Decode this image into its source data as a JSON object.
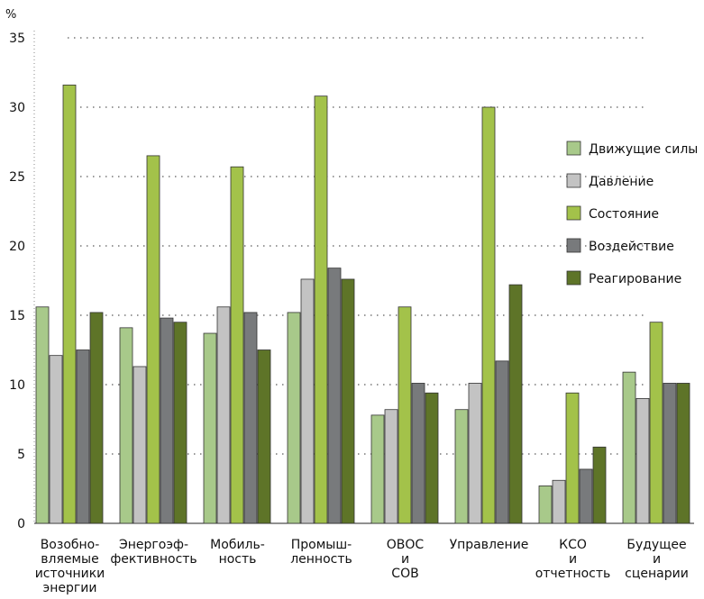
{
  "chart_data": {
    "type": "bar",
    "ylabel": "%",
    "ylim": [
      0,
      35
    ],
    "yticks": [
      0,
      5,
      10,
      15,
      20,
      25,
      30,
      35
    ],
    "grid": "horizontal dotted",
    "legend_position": "right",
    "categories": [
      [
        "Возобно-",
        "вляемые",
        "источники",
        "энергии"
      ],
      [
        "Энергоэф-",
        "фективность"
      ],
      [
        "Мобиль-",
        "ность"
      ],
      [
        "Промыш-",
        "ленность"
      ],
      [
        "ОВОС",
        "и",
        "СОВ"
      ],
      [
        "Управление"
      ],
      [
        "КСО",
        "и",
        "отчетность"
      ],
      [
        "Будущее",
        "и",
        "сценарии"
      ]
    ],
    "series": [
      {
        "name": "Движущие силы",
        "color": "#a8c98a",
        "values": [
          15.6,
          14.1,
          13.7,
          15.2,
          7.8,
          8.2,
          2.7,
          10.9
        ]
      },
      {
        "name": "Давление",
        "color": "#c3c3c3",
        "values": [
          12.1,
          11.3,
          15.6,
          17.6,
          8.2,
          10.1,
          3.1,
          9.0
        ]
      },
      {
        "name": "Состояние",
        "color": "#a3c24a",
        "values": [
          31.6,
          26.5,
          25.7,
          30.8,
          15.6,
          30.0,
          9.4,
          14.5
        ]
      },
      {
        "name": "Воздействие",
        "color": "#787a7c",
        "values": [
          12.5,
          14.8,
          15.2,
          18.4,
          10.1,
          11.7,
          3.9,
          10.1
        ]
      },
      {
        "name": "Реагирование",
        "color": "#5e7428",
        "values": [
          15.2,
          14.5,
          12.5,
          17.6,
          9.4,
          17.2,
          5.5,
          10.1
        ]
      }
    ]
  }
}
